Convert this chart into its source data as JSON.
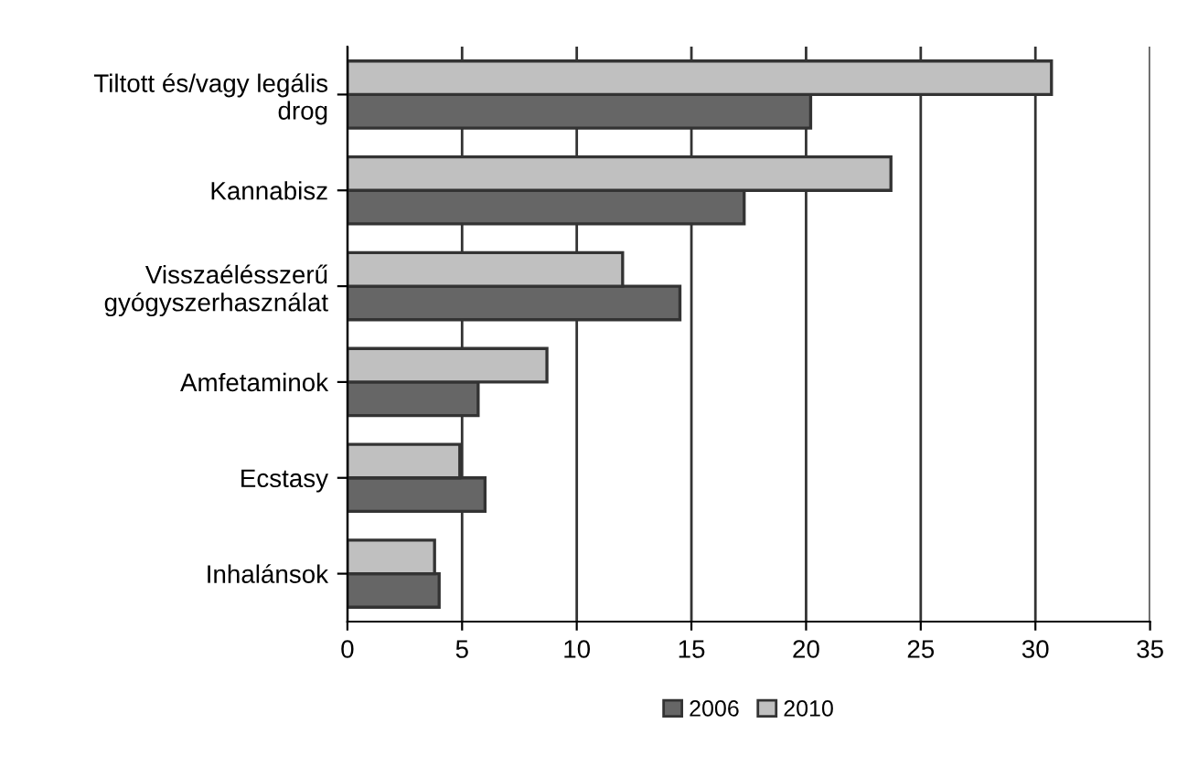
{
  "chart_data": {
    "type": "bar",
    "orientation": "horizontal",
    "categories": [
      "Tiltott és/vagy legális drog",
      "Kannabisz",
      "Visszaélésszerű gyógyszerhasználat",
      "Amfetaminok",
      "Ecstasy",
      "Inhalánsok"
    ],
    "series": [
      {
        "name": "2006",
        "color": "#666666",
        "values": [
          20.2,
          17.3,
          14.5,
          5.7,
          6.0,
          4.0
        ]
      },
      {
        "name": "2010",
        "color": "#c0c0c0",
        "values": [
          30.7,
          23.7,
          12.0,
          8.7,
          4.9,
          3.8
        ]
      }
    ],
    "xlim": [
      0,
      35
    ],
    "xticks": [
      0,
      5,
      10,
      15,
      20,
      25,
      30,
      35
    ],
    "grid": "x",
    "legend": "bottom"
  }
}
